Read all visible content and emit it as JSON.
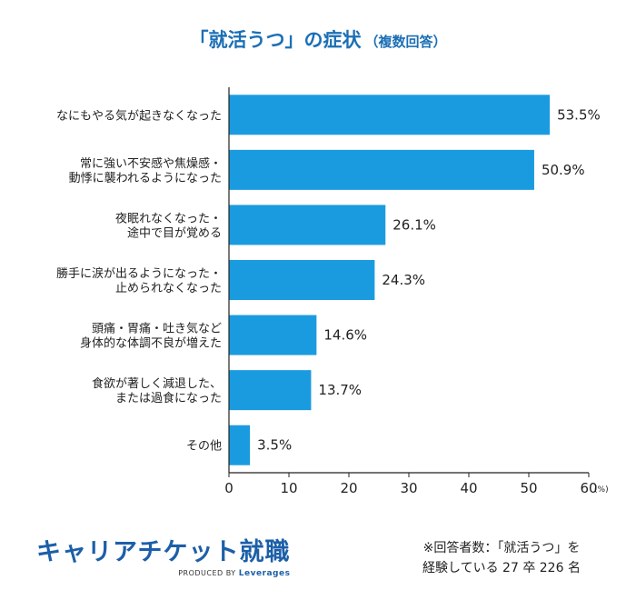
{
  "chart_data": {
    "type": "bar",
    "orientation": "horizontal",
    "title": "「就活うつ」の症状",
    "subtitle": "（複数回答）",
    "categories": [
      [
        "なにもやる気が起きなくなった"
      ],
      [
        "常に強い不安感や焦燥感・",
        "動悸に襲われるようになった"
      ],
      [
        "夜眠れなくなった・",
        "途中で目が覚める"
      ],
      [
        "勝手に涙が出るようになった・",
        "止められなくなった"
      ],
      [
        "頭痛・胃痛・吐き気など",
        "身体的な体調不良が増えた"
      ],
      [
        "食欲が著しく減退した、",
        "または過食になった"
      ],
      [
        "その他"
      ]
    ],
    "values": [
      53.5,
      50.9,
      26.1,
      24.3,
      14.6,
      13.7,
      3.5
    ],
    "value_labels": [
      "53.5%",
      "50.9%",
      "26.1%",
      "24.3%",
      "14.6%",
      "13.7%",
      "3.5%"
    ],
    "xlim": [
      0,
      60
    ],
    "xticks": [
      0,
      10,
      20,
      30,
      40,
      50,
      60
    ],
    "xunit": "(%)",
    "bar_color": "#1a9be0",
    "grid": false
  },
  "footer": {
    "logo_text": "キャリアチケット就職",
    "logo_sub_prefix": "PRODUCED BY",
    "logo_sub_brand": "Leverages",
    "note_line1": "※回答者数：「就活うつ」を",
    "note_line2": "経験している 27 卒 226 名"
  }
}
